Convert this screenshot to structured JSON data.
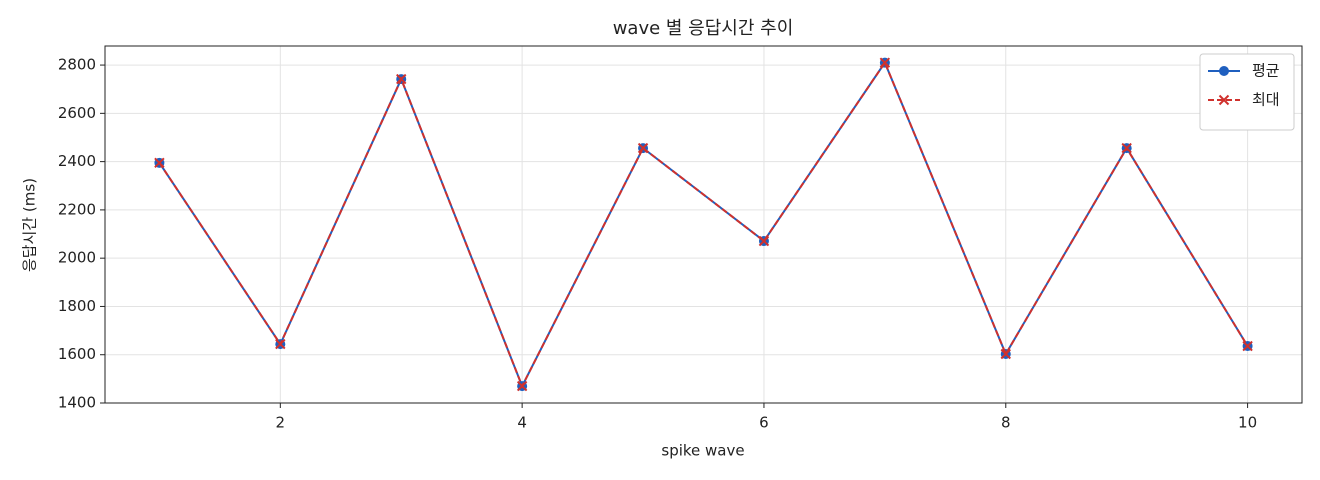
{
  "chart_data": {
    "type": "line",
    "title": "wave 별 응답시간 추이",
    "x_label": "spike wave",
    "y_label": "응답시간 (ms)",
    "x": [
      1,
      2,
      3,
      4,
      5,
      6,
      7,
      8,
      9,
      10
    ],
    "series": [
      {
        "name": "평균",
        "color": "#1f5fbf",
        "marker": "circle",
        "dash": false,
        "values": [
          2395,
          1644,
          2742,
          1470,
          2456,
          2071,
          2810,
          1603,
          2456,
          1636
        ]
      },
      {
        "name": "최대",
        "color": "#d0312d",
        "marker": "x",
        "dash": true,
        "values": [
          2395,
          1644,
          2742,
          1470,
          2456,
          2071,
          2810,
          1603,
          2456,
          1636
        ]
      }
    ],
    "xlim": [
      0.55,
      10.45
    ],
    "ylim": [
      1400,
      2879
    ],
    "xticks": [
      2,
      4,
      6,
      8,
      10
    ],
    "yticks": [
      1400,
      1600,
      1800,
      2000,
      2200,
      2400,
      2600,
      2800
    ],
    "grid": true,
    "legend": "upper right"
  }
}
